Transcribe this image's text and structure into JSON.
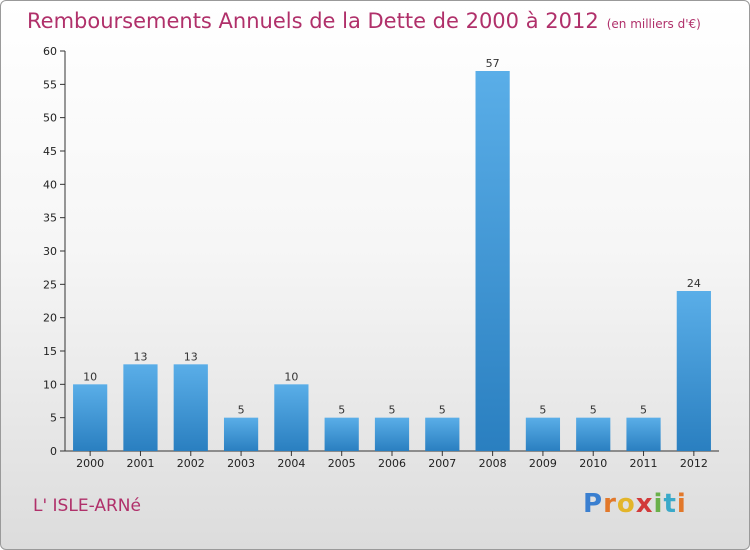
{
  "chart_data": {
    "type": "bar",
    "title": "Remboursements Annuels de la Dette de 2000 à 2012",
    "unit": "(en milliers d'€)",
    "commune": "L' ISLE-ARNé",
    "categories": [
      "2000",
      "2001",
      "2002",
      "2003",
      "2004",
      "2005",
      "2006",
      "2007",
      "2008",
      "2009",
      "2010",
      "2011",
      "2012"
    ],
    "values": [
      10,
      13,
      13,
      5,
      10,
      5,
      5,
      5,
      57,
      5,
      5,
      5,
      24
    ],
    "yticks": [
      0,
      5,
      10,
      15,
      20,
      25,
      30,
      35,
      40,
      45,
      50,
      55,
      60
    ],
    "ylim": [
      0,
      60
    ],
    "grid": false,
    "bar_color_top": "#5aaee8",
    "bar_color_bottom": "#2a7fc0"
  },
  "logo": {
    "letters": [
      "P",
      "r",
      "o",
      "x",
      "i",
      "t",
      "i"
    ]
  }
}
